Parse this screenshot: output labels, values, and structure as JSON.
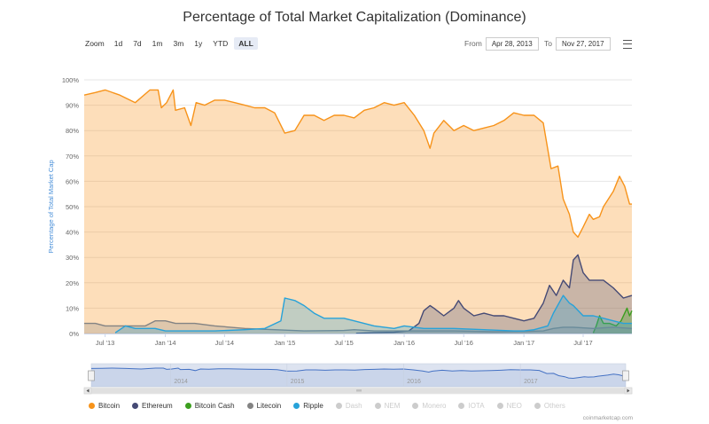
{
  "title": "Percentage of Total Market Capitalization (Dominance)",
  "zoom": {
    "label": "Zoom",
    "buttons": [
      "1d",
      "7d",
      "1m",
      "3m",
      "1y",
      "YTD",
      "ALL"
    ],
    "active": "ALL"
  },
  "range": {
    "from_label": "From",
    "from_value": "Apr 28, 2013",
    "to_label": "To",
    "to_value": "Nov 27, 2017"
  },
  "credits": "coinmarketcap.com",
  "legend": [
    {
      "name": "Bitcoin",
      "color": "#f7931a",
      "active": true
    },
    {
      "name": "Ethereum",
      "color": "#454a75",
      "active": true
    },
    {
      "name": "Bitcoin Cash",
      "color": "#3c9f1f",
      "active": true
    },
    {
      "name": "Litecoin",
      "color": "#838383",
      "active": true
    },
    {
      "name": "Ripple",
      "color": "#27a2d9",
      "active": true
    },
    {
      "name": "Dash",
      "color": "#cccccc",
      "active": false
    },
    {
      "name": "NEM",
      "color": "#cccccc",
      "active": false
    },
    {
      "name": "Monero",
      "color": "#cccccc",
      "active": false
    },
    {
      "name": "IOTA",
      "color": "#cccccc",
      "active": false
    },
    {
      "name": "NEO",
      "color": "#cccccc",
      "active": false
    },
    {
      "name": "Others",
      "color": "#cccccc",
      "active": false
    }
  ],
  "chart_data": {
    "type": "area",
    "title": "Percentage of Total Market Capitalization (Dominance)",
    "ylabel": "Percentage of Total Market Cap",
    "ylim": [
      0,
      100
    ],
    "yticks": [
      "0%",
      "10%",
      "20%",
      "30%",
      "40%",
      "50%",
      "60%",
      "70%",
      "80%",
      "90%",
      "100%"
    ],
    "xlim": [
      "2013-04-28",
      "2017-11-27"
    ],
    "xticks": [
      {
        "date": "2013-07-01",
        "label": "Jul '13"
      },
      {
        "date": "2014-01-01",
        "label": "Jan '14"
      },
      {
        "date": "2014-07-01",
        "label": "Jul '14"
      },
      {
        "date": "2015-01-01",
        "label": "Jan '15"
      },
      {
        "date": "2015-07-01",
        "label": "Jul '15"
      },
      {
        "date": "2016-01-01",
        "label": "Jan '16"
      },
      {
        "date": "2016-07-01",
        "label": "Jul '16"
      },
      {
        "date": "2017-01-01",
        "label": "Jan '17"
      },
      {
        "date": "2017-07-01",
        "label": "Jul '17"
      }
    ],
    "navigator": {
      "labels": [
        "2014",
        "2015",
        "2016",
        "2017"
      ]
    },
    "grid": true,
    "legend_position": "bottom",
    "series": [
      {
        "name": "Bitcoin",
        "color": "#f7931a",
        "points": [
          [
            "2013-04-28",
            94
          ],
          [
            "2013-06-01",
            95
          ],
          [
            "2013-07-01",
            96
          ],
          [
            "2013-08-15",
            94
          ],
          [
            "2013-10-01",
            91
          ],
          [
            "2013-11-15",
            96
          ],
          [
            "2013-12-10",
            96
          ],
          [
            "2013-12-20",
            89
          ],
          [
            "2014-01-05",
            91
          ],
          [
            "2014-01-25",
            96
          ],
          [
            "2014-02-01",
            88
          ],
          [
            "2014-03-01",
            89
          ],
          [
            "2014-03-20",
            82
          ],
          [
            "2014-04-05",
            91
          ],
          [
            "2014-05-01",
            90
          ],
          [
            "2014-06-01",
            92
          ],
          [
            "2014-07-01",
            92
          ],
          [
            "2014-08-01",
            91
          ],
          [
            "2014-09-01",
            90
          ],
          [
            "2014-10-01",
            89
          ],
          [
            "2014-11-01",
            89
          ],
          [
            "2014-12-01",
            87
          ],
          [
            "2015-01-01",
            79
          ],
          [
            "2015-02-01",
            80
          ],
          [
            "2015-03-01",
            86
          ],
          [
            "2015-04-01",
            86
          ],
          [
            "2015-05-01",
            84
          ],
          [
            "2015-06-01",
            86
          ],
          [
            "2015-07-01",
            86
          ],
          [
            "2015-08-01",
            85
          ],
          [
            "2015-09-01",
            88
          ],
          [
            "2015-10-01",
            89
          ],
          [
            "2015-11-01",
            91
          ],
          [
            "2015-12-01",
            90
          ],
          [
            "2016-01-01",
            91
          ],
          [
            "2016-02-01",
            86
          ],
          [
            "2016-03-01",
            80
          ],
          [
            "2016-03-20",
            73
          ],
          [
            "2016-04-01",
            79
          ],
          [
            "2016-05-01",
            84
          ],
          [
            "2016-06-01",
            80
          ],
          [
            "2016-07-01",
            82
          ],
          [
            "2016-08-01",
            80
          ],
          [
            "2016-09-01",
            81
          ],
          [
            "2016-10-01",
            82
          ],
          [
            "2016-11-01",
            84
          ],
          [
            "2016-12-01",
            87
          ],
          [
            "2017-01-01",
            86
          ],
          [
            "2017-02-01",
            86
          ],
          [
            "2017-03-01",
            83
          ],
          [
            "2017-03-25",
            65
          ],
          [
            "2017-04-15",
            66
          ],
          [
            "2017-05-01",
            53
          ],
          [
            "2017-05-20",
            47
          ],
          [
            "2017-06-01",
            40
          ],
          [
            "2017-06-15",
            38
          ],
          [
            "2017-07-01",
            42
          ],
          [
            "2017-07-20",
            47
          ],
          [
            "2017-08-01",
            45
          ],
          [
            "2017-08-20",
            46
          ],
          [
            "2017-09-01",
            50
          ],
          [
            "2017-10-01",
            56
          ],
          [
            "2017-10-20",
            62
          ],
          [
            "2017-11-05",
            58
          ],
          [
            "2017-11-20",
            51
          ],
          [
            "2017-11-27",
            51
          ]
        ]
      },
      {
        "name": "Ethereum",
        "color": "#454a75",
        "points": [
          [
            "2015-08-07",
            0.1
          ],
          [
            "2015-10-01",
            0.4
          ],
          [
            "2015-12-01",
            0.5
          ],
          [
            "2016-01-15",
            1
          ],
          [
            "2016-02-15",
            4
          ],
          [
            "2016-03-01",
            9
          ],
          [
            "2016-03-20",
            11
          ],
          [
            "2016-04-01",
            10
          ],
          [
            "2016-05-01",
            7
          ],
          [
            "2016-06-01",
            10
          ],
          [
            "2016-06-15",
            13
          ],
          [
            "2016-07-01",
            10
          ],
          [
            "2016-08-01",
            7
          ],
          [
            "2016-09-01",
            8
          ],
          [
            "2016-10-01",
            7
          ],
          [
            "2016-11-01",
            7
          ],
          [
            "2016-12-01",
            6
          ],
          [
            "2017-01-01",
            5
          ],
          [
            "2017-02-01",
            6
          ],
          [
            "2017-03-01",
            12
          ],
          [
            "2017-03-20",
            19
          ],
          [
            "2017-04-10",
            15
          ],
          [
            "2017-05-01",
            21
          ],
          [
            "2017-05-20",
            18
          ],
          [
            "2017-06-01",
            29
          ],
          [
            "2017-06-15",
            31
          ],
          [
            "2017-07-01",
            24
          ],
          [
            "2017-07-20",
            21
          ],
          [
            "2017-08-01",
            21
          ],
          [
            "2017-09-01",
            21
          ],
          [
            "2017-10-01",
            18
          ],
          [
            "2017-11-01",
            14
          ],
          [
            "2017-11-27",
            15
          ]
        ]
      },
      {
        "name": "Bitcoin Cash",
        "color": "#3c9f1f",
        "points": [
          [
            "2017-08-01",
            0.2
          ],
          [
            "2017-08-10",
            3
          ],
          [
            "2017-08-20",
            7
          ],
          [
            "2017-09-01",
            4
          ],
          [
            "2017-09-20",
            4
          ],
          [
            "2017-10-10",
            3
          ],
          [
            "2017-10-25",
            5
          ],
          [
            "2017-11-12",
            10
          ],
          [
            "2017-11-20",
            7
          ],
          [
            "2017-11-27",
            9
          ]
        ]
      },
      {
        "name": "Litecoin",
        "color": "#838383",
        "points": [
          [
            "2013-04-28",
            4
          ],
          [
            "2013-06-01",
            4
          ],
          [
            "2013-07-01",
            3
          ],
          [
            "2013-09-01",
            3
          ],
          [
            "2013-11-01",
            3
          ],
          [
            "2013-12-01",
            5
          ],
          [
            "2014-01-01",
            5
          ],
          [
            "2014-02-01",
            4
          ],
          [
            "2014-04-01",
            4
          ],
          [
            "2014-06-01",
            3
          ],
          [
            "2014-09-01",
            2
          ],
          [
            "2014-12-01",
            1.5
          ],
          [
            "2015-03-01",
            1
          ],
          [
            "2015-07-01",
            1.2
          ],
          [
            "2015-08-01",
            1.5
          ],
          [
            "2015-10-01",
            1
          ],
          [
            "2016-01-01",
            1
          ],
          [
            "2016-06-01",
            1
          ],
          [
            "2016-10-01",
            0.7
          ],
          [
            "2017-01-01",
            0.8
          ],
          [
            "2017-03-01",
            1
          ],
          [
            "2017-04-01",
            2
          ],
          [
            "2017-05-01",
            2.5
          ],
          [
            "2017-06-01",
            2.5
          ],
          [
            "2017-08-01",
            2
          ],
          [
            "2017-10-01",
            2.5
          ],
          [
            "2017-11-27",
            2
          ]
        ]
      },
      {
        "name": "Ripple",
        "color": "#27a2d9",
        "points": [
          [
            "2013-08-01",
            0.3
          ],
          [
            "2013-09-01",
            3
          ],
          [
            "2013-10-01",
            2
          ],
          [
            "2013-12-01",
            2
          ],
          [
            "2014-01-01",
            1
          ],
          [
            "2014-03-01",
            1
          ],
          [
            "2014-06-01",
            1
          ],
          [
            "2014-09-01",
            1.5
          ],
          [
            "2014-11-01",
            2
          ],
          [
            "2014-12-20",
            5
          ],
          [
            "2015-01-01",
            14
          ],
          [
            "2015-02-01",
            13
          ],
          [
            "2015-03-01",
            11
          ],
          [
            "2015-04-01",
            8
          ],
          [
            "2015-05-01",
            6
          ],
          [
            "2015-06-01",
            6
          ],
          [
            "2015-07-01",
            6
          ],
          [
            "2015-08-01",
            5
          ],
          [
            "2015-10-01",
            3
          ],
          [
            "2015-12-01",
            2
          ],
          [
            "2016-01-01",
            3
          ],
          [
            "2016-03-01",
            2
          ],
          [
            "2016-06-01",
            2
          ],
          [
            "2016-09-01",
            1.5
          ],
          [
            "2016-12-01",
            1
          ],
          [
            "2017-01-01",
            1
          ],
          [
            "2017-02-01",
            1.5
          ],
          [
            "2017-03-15",
            3
          ],
          [
            "2017-04-01",
            8
          ],
          [
            "2017-05-01",
            15
          ],
          [
            "2017-05-20",
            12
          ],
          [
            "2017-06-01",
            11
          ],
          [
            "2017-07-01",
            7
          ],
          [
            "2017-08-01",
            7
          ],
          [
            "2017-09-01",
            6
          ],
          [
            "2017-10-01",
            5
          ],
          [
            "2017-11-01",
            4
          ],
          [
            "2017-11-27",
            4
          ]
        ]
      }
    ]
  }
}
